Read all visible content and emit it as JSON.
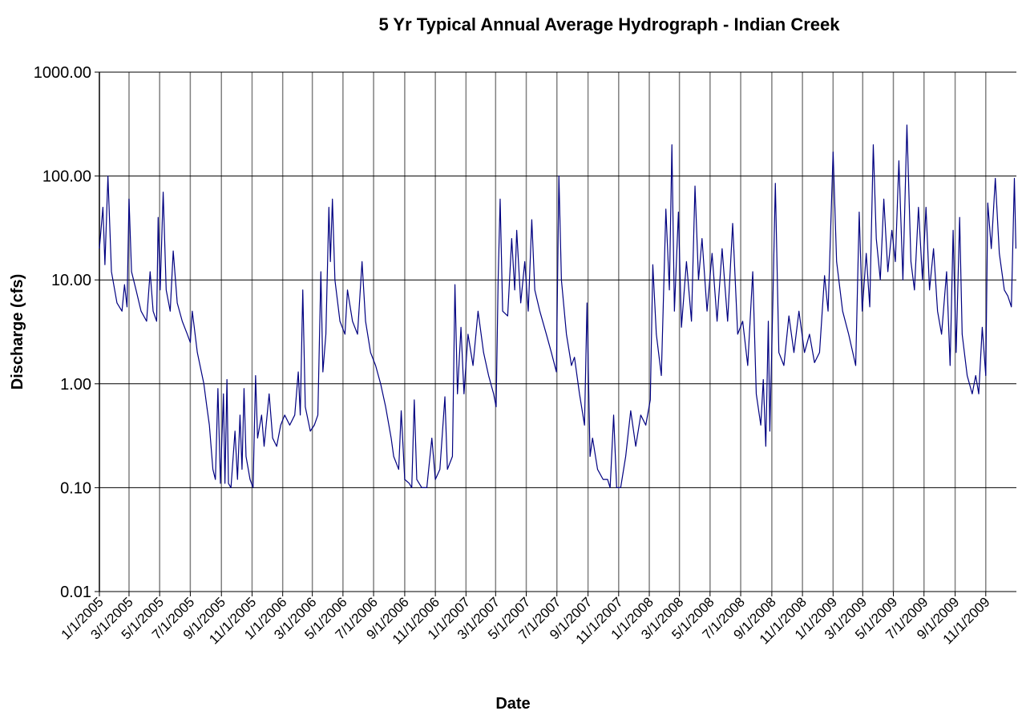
{
  "chart_data": {
    "type": "line",
    "title": "5 Yr Typical Annual Average Hydrograph - Indian Creek",
    "x_label": "Date",
    "y_label": "Discharge (cfs)",
    "color": "#000080",
    "log_scale": true,
    "grid": true,
    "xlim": [
      "1/1/2005",
      "1/1/2010"
    ],
    "xticks": [
      "1/1/2005",
      "3/1/2005",
      "5/1/2005",
      "7/1/2005",
      "9/1/2005",
      "11/1/2005",
      "1/1/2006",
      "3/1/2006",
      "5/1/2006",
      "7/1/2006",
      "9/1/2006",
      "11/1/2006",
      "1/1/2007",
      "3/1/2007",
      "5/1/2007",
      "7/1/2007",
      "9/1/2007",
      "11/1/2007",
      "1/1/2008",
      "3/1/2008",
      "5/1/2008",
      "7/1/2008",
      "9/1/2008",
      "11/1/2008",
      "1/1/2009",
      "3/1/2009",
      "5/1/2009",
      "7/1/2009",
      "9/1/2009",
      "11/1/2009"
    ],
    "ylim": [
      0.01,
      1000
    ],
    "yticks": [
      {
        "value": 0.01,
        "label": "0.01"
      },
      {
        "value": 0.1,
        "label": "0.10"
      },
      {
        "value": 1,
        "label": "1.00"
      },
      {
        "value": 10,
        "label": "10.00"
      },
      {
        "value": 100,
        "label": "100.00"
      },
      {
        "value": 1000,
        "label": "1000.00"
      }
    ],
    "x": [
      "1/1/2005",
      "1/8/2005",
      "1/12/2005",
      "1/18/2005",
      "1/25/2005",
      "2/5/2005",
      "2/15/2005",
      "2/20/2005",
      "2/25/2005",
      "3/1/2005",
      "3/6/2005",
      "3/15/2005",
      "3/25/2005",
      "4/5/2005",
      "4/12/2005",
      "4/18/2005",
      "4/25/2005",
      "4/28/2005",
      "5/2/2005",
      "5/8/2005",
      "5/14/2005",
      "5/22/2005",
      "5/28/2005",
      "6/5/2005",
      "6/15/2005",
      "6/25/2005",
      "7/1/2005",
      "7/5/2005",
      "7/15/2005",
      "7/28/2005",
      "8/3/2005",
      "8/8/2005",
      "8/15/2005",
      "8/20/2005",
      "8/25/2005",
      "8/30/2005",
      "9/5/2005",
      "9/8/2005",
      "9/12/2005",
      "9/15/2005",
      "9/20/2005",
      "9/28/2005",
      "10/3/2005",
      "10/8/2005",
      "10/12/2005",
      "10/16/2005",
      "10/20/2005",
      "10/28/2005",
      "11/3/2005",
      "11/8/2005",
      "11/12/2005",
      "11/20/2005",
      "11/25/2005",
      "12/5/2005",
      "12/12/2005",
      "12/20/2005",
      "12/28/2005",
      "1/5/2006",
      "1/15/2006",
      "1/25/2006",
      "2/1/2006",
      "2/5/2006",
      "2/10/2006",
      "2/15/2006",
      "2/25/2006",
      "3/5/2006",
      "3/12/2006",
      "3/18/2006",
      "3/22/2006",
      "3/28/2006",
      "4/3/2006",
      "4/6/2006",
      "4/10/2006",
      "4/15/2006",
      "4/25/2006",
      "5/5/2006",
      "5/10/2006",
      "5/20/2006",
      "5/30/2006",
      "6/8/2006",
      "6/15/2006",
      "6/25/2006",
      "7/5/2006",
      "7/15/2006",
      "7/25/2006",
      "8/5/2006",
      "8/10/2006",
      "8/20/2006",
      "8/25/2006",
      "9/1/2006",
      "9/10/2006",
      "9/15/2006",
      "9/20/2006",
      "9/25/2006",
      "10/5/2006",
      "10/15/2006",
      "10/25/2006",
      "11/1/2006",
      "11/10/2006",
      "11/20/2006",
      "11/25/2006",
      "12/5/2006",
      "12/10/2006",
      "12/15/2006",
      "12/22/2006",
      "12/28/2006",
      "1/5/2007",
      "1/15/2007",
      "1/25/2007",
      "2/5/2007",
      "2/15/2007",
      "2/25/2007",
      "3/2/2007",
      "3/6/2007",
      "3/10/2007",
      "3/15/2007",
      "3/25/2007",
      "4/2/2007",
      "4/8/2007",
      "4/12/2007",
      "4/20/2007",
      "4/28/2007",
      "5/5/2007",
      "5/12/2007",
      "5/18/2007",
      "5/28/2007",
      "6/10/2007",
      "6/20/2007",
      "6/30/2007",
      "7/5/2007",
      "7/10/2007",
      "7/20/2007",
      "7/30/2007",
      "8/5/2007",
      "8/15/2007",
      "8/25/2007",
      "8/30/2007",
      "9/5/2007",
      "9/10/2007",
      "9/20/2007",
      "10/1/2007",
      "10/10/2007",
      "10/15/2007",
      "10/22/2007",
      "10/28/2007",
      "11/5/2007",
      "11/15/2007",
      "11/25/2007",
      "12/5/2007",
      "12/15/2007",
      "12/25/2007",
      "1/3/2008",
      "1/8/2008",
      "1/15/2008",
      "1/25/2008",
      "2/3/2008",
      "2/10/2008",
      "2/15/2008",
      "2/20/2008",
      "2/28/2008",
      "3/5/2008",
      "3/15/2008",
      "3/25/2008",
      "4/1/2008",
      "4/8/2008",
      "4/15/2008",
      "4/25/2008",
      "5/5/2008",
      "5/15/2008",
      "5/25/2008",
      "6/5/2008",
      "6/15/2008",
      "6/25/2008",
      "7/5/2008",
      "7/15/2008",
      "7/25/2008",
      "8/1/2008",
      "8/10/2008",
      "8/15/2008",
      "8/20/2008",
      "8/25/2008",
      "8/28/2008",
      "9/3/2008",
      "9/8/2008",
      "9/15/2008",
      "9/25/2008",
      "10/5/2008",
      "10/15/2008",
      "10/25/2008",
      "11/5/2008",
      "11/15/2008",
      "11/25/2008",
      "12/5/2008",
      "12/15/2008",
      "12/22/2008",
      "1/1/2009",
      "1/8/2009",
      "1/20/2009",
      "2/1/2009",
      "2/15/2009",
      "2/22/2009",
      "2/28/2009",
      "3/8/2009",
      "3/15/2009",
      "3/22/2009",
      "3/28/2009",
      "4/5/2009",
      "4/12/2009",
      "4/20/2009",
      "4/28/2009",
      "5/5/2009",
      "5/12/2009",
      "5/20/2009",
      "5/28/2009",
      "6/5/2009",
      "6/12/2009",
      "6/20/2009",
      "6/28/2009",
      "7/5/2009",
      "7/12/2009",
      "7/20/2009",
      "7/28/2009",
      "8/5/2009",
      "8/15/2009",
      "8/22/2009",
      "8/28/2009",
      "9/3/2009",
      "9/10/2009",
      "9/15/2009",
      "9/25/2009",
      "10/5/2009",
      "10/12/2009",
      "10/18/2009",
      "10/25/2009",
      "11/1/2009",
      "11/5/2009",
      "11/12/2009",
      "11/20/2009",
      "11/28/2009",
      "12/8/2009",
      "12/15/2009",
      "12/22/2009",
      "12/28/2009",
      "12/31/2009"
    ],
    "values": [
      20,
      50,
      14,
      100,
      12,
      6,
      5,
      9,
      5.5,
      60,
      12,
      8,
      5,
      4,
      12,
      5,
      4,
      40,
      8,
      70,
      8,
      5,
      19,
      6,
      4,
      3,
      2.5,
      5,
      2,
      1,
      0.6,
      0.4,
      0.15,
      0.12,
      0.9,
      0.11,
      0.8,
      0.11,
      1.1,
      0.11,
      0.1,
      0.35,
      0.12,
      0.5,
      0.15,
      0.9,
      0.2,
      0.12,
      0.1,
      1.2,
      0.3,
      0.5,
      0.25,
      0.8,
      0.3,
      0.25,
      0.4,
      0.5,
      0.4,
      0.5,
      1.3,
      0.5,
      8,
      0.6,
      0.35,
      0.4,
      0.5,
      12,
      1.3,
      3,
      50,
      15,
      60,
      10,
      4,
      3,
      8,
      4,
      3,
      15,
      4,
      2,
      1.5,
      1,
      0.6,
      0.3,
      0.2,
      0.15,
      0.55,
      0.12,
      0.11,
      0.1,
      0.7,
      0.12,
      0.1,
      0.1,
      0.3,
      0.12,
      0.15,
      0.75,
      0.15,
      0.2,
      9,
      0.8,
      3.5,
      0.8,
      3,
      1.5,
      5,
      2,
      1.2,
      0.8,
      0.6,
      10,
      60,
      5,
      4.5,
      25,
      8,
      30,
      6,
      15,
      5,
      38,
      8,
      5,
      3,
      2,
      1.3,
      100,
      10,
      3,
      1.5,
      1.8,
      0.8,
      0.4,
      6,
      0.2,
      0.3,
      0.15,
      0.12,
      0.12,
      0.1,
      0.5,
      0.1,
      0.1,
      0.2,
      0.55,
      0.25,
      0.5,
      0.4,
      0.7,
      14,
      3,
      1.2,
      48,
      8,
      200,
      5,
      45,
      3.5,
      15,
      4,
      80,
      10,
      25,
      5,
      18,
      4,
      20,
      4,
      35,
      3,
      4,
      1.5,
      12,
      0.8,
      0.4,
      1.1,
      0.25,
      4,
      0.35,
      6,
      85,
      2,
      1.5,
      4.5,
      2,
      5,
      2,
      3,
      1.6,
      2,
      11,
      5,
      170,
      15,
      5,
      3,
      1.5,
      45,
      5,
      18,
      5.5,
      200,
      25,
      10,
      60,
      12,
      30,
      15,
      140,
      10,
      310,
      15,
      8,
      50,
      10,
      50,
      8,
      20,
      5,
      3,
      12,
      1.5,
      30,
      2,
      40,
      3,
      1.2,
      0.8,
      1.2,
      0.8,
      3.5,
      1.2,
      55,
      20,
      95,
      18,
      8,
      7,
      5.5,
      95,
      20
    ]
  }
}
